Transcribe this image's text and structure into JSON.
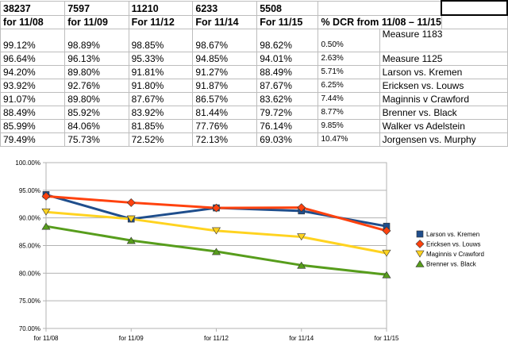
{
  "sheet": {
    "header_counts": [
      "38237",
      "7597",
      "11210",
      "6233",
      "5508",
      "",
      ""
    ],
    "header_dates": [
      "for 11/08",
      "for 11/09",
      "For 11/12",
      "For 11/14",
      "For 11/15",
      "% DCR from 11/08 – 11/15",
      ""
    ],
    "rows": [
      {
        "vals": [
          "99.12%",
          "98.89%",
          "98.85%",
          "98.67%",
          "98.62%"
        ],
        "dcr": "0.50%",
        "name": "Measure 1183"
      },
      {
        "vals": [
          "96.64%",
          "96.13%",
          "95.33%",
          "94.85%",
          "94.01%"
        ],
        "dcr": "2.63%",
        "name": "Measure 1125"
      },
      {
        "vals": [
          "94.20%",
          "89.80%",
          "91.81%",
          "91.27%",
          "88.49%"
        ],
        "dcr": "5.71%",
        "name": "Larson vs. Kremen"
      },
      {
        "vals": [
          "93.92%",
          "92.76%",
          "91.80%",
          "91.87%",
          "87.67%"
        ],
        "dcr": "6.25%",
        "name": "Ericksen vs. Louws"
      },
      {
        "vals": [
          "91.07%",
          "89.80%",
          "87.67%",
          "86.57%",
          "83.62%"
        ],
        "dcr": "7.44%",
        "name": "Maginnis v Crawford"
      },
      {
        "vals": [
          "88.49%",
          "85.92%",
          "83.92%",
          "81.44%",
          "79.72%"
        ],
        "dcr": "8.77%",
        "name": "Brenner vs. Black"
      },
      {
        "vals": [
          "85.99%",
          "84.06%",
          "81.85%",
          "77.76%",
          "76.14%"
        ],
        "dcr": "9.85%",
        "name": "Walker vs Adelstein"
      },
      {
        "vals": [
          "79.49%",
          "75.73%",
          "72.52%",
          "72.13%",
          "69.03%"
        ],
        "dcr": "10.47%",
        "name": "Jorgensen vs. Murphy"
      }
    ]
  },
  "chart_data": {
    "type": "line",
    "categories": [
      "for 11/08",
      "for 11/09",
      "for 11/12",
      "for 11/14",
      "for 11/15"
    ],
    "ylim": [
      0.7,
      1.0
    ],
    "yticks": [
      0.7,
      0.75,
      0.8,
      0.85,
      0.9,
      0.95,
      1.0
    ],
    "ytick_labels": [
      "70.00%",
      "75.00%",
      "80.00%",
      "85.00%",
      "90.00%",
      "95.00%",
      "100.00%"
    ],
    "grid": true,
    "legend_position": "right",
    "series": [
      {
        "name": "Larson vs. Kremen",
        "values": [
          0.942,
          0.898,
          0.9181,
          0.9127,
          0.8849
        ],
        "color": "#1f4e8c",
        "marker": "square"
      },
      {
        "name": "Ericksen vs. Louws",
        "values": [
          0.9392,
          0.9276,
          0.918,
          0.9187,
          0.8767
        ],
        "color": "#ff420e",
        "marker": "diamond"
      },
      {
        "name": "Maginnis v Crawford",
        "values": [
          0.9107,
          0.898,
          0.8767,
          0.8657,
          0.8362
        ],
        "color": "#ffd320",
        "marker": "triangle-down"
      },
      {
        "name": "Brenner vs. Black",
        "values": [
          0.8849,
          0.8592,
          0.8392,
          0.8144,
          0.7972
        ],
        "color": "#579d1c",
        "marker": "triangle-up"
      }
    ]
  }
}
